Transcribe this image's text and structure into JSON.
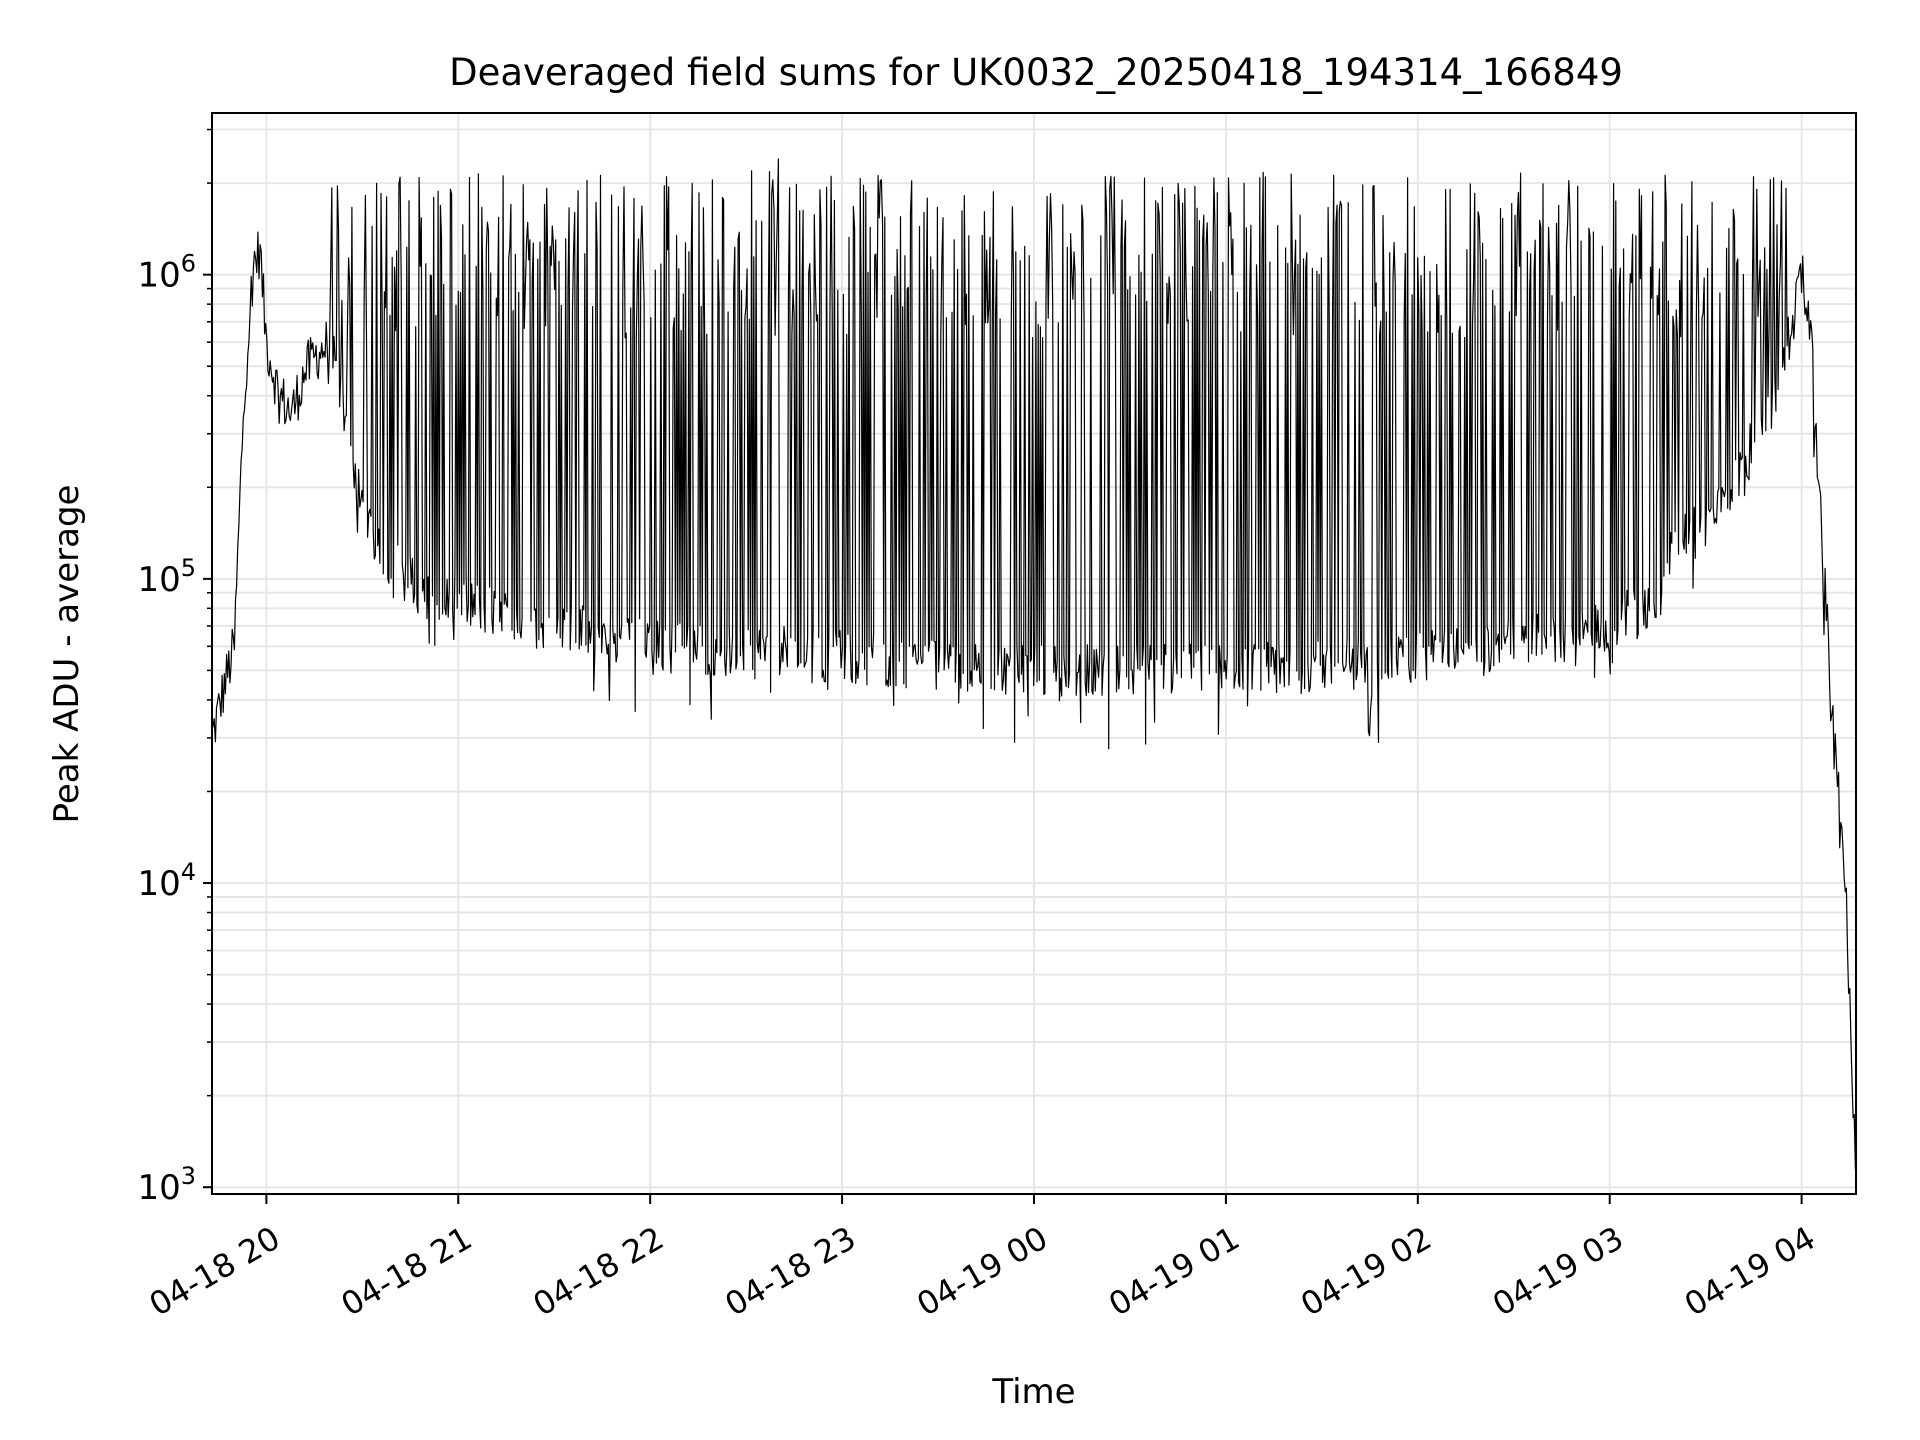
{
  "chart_data": {
    "type": "line",
    "title": "Deaveraged field sums for UK0032_20250418_194314_166849",
    "xlabel": "Time",
    "ylabel": "Peak ADU - average",
    "yscale": "log",
    "ylim": [
      950,
      3400000
    ],
    "xlim": [
      "2025-04-18 19:43",
      "2025-04-19 04:17"
    ],
    "grid": true,
    "line_color": "#000000",
    "grid_color": "#e6e6e6",
    "x_ticks": [
      {
        "label": "04-18 20",
        "time": "2025-04-18 20:00"
      },
      {
        "label": "04-18 21",
        "time": "2025-04-18 21:00"
      },
      {
        "label": "04-18 22",
        "time": "2025-04-18 22:00"
      },
      {
        "label": "04-18 23",
        "time": "2025-04-18 23:00"
      },
      {
        "label": "04-19 00",
        "time": "2025-04-19 00:00"
      },
      {
        "label": "04-19 01",
        "time": "2025-04-19 01:00"
      },
      {
        "label": "04-19 02",
        "time": "2025-04-19 02:00"
      },
      {
        "label": "04-19 03",
        "time": "2025-04-19 03:00"
      },
      {
        "label": "04-19 04",
        "time": "2025-04-19 04:00"
      }
    ],
    "y_ticks": [
      {
        "base": "10",
        "exp": "3",
        "value": 1000
      },
      {
        "base": "10",
        "exp": "4",
        "value": 10000
      },
      {
        "base": "10",
        "exp": "5",
        "value": 100000
      },
      {
        "base": "10",
        "exp": "6",
        "value": 1000000
      }
    ],
    "series": [
      {
        "baseline": [
          [
            "2025-04-18 19:43",
            30000
          ],
          [
            "2025-04-18 19:47",
            45000
          ],
          [
            "2025-04-18 19:50",
            60000
          ],
          [
            "2025-04-18 19:53",
            400000
          ],
          [
            "2025-04-18 19:56",
            1100000
          ],
          [
            "2025-04-18 19:58",
            1200000
          ],
          [
            "2025-04-18 20:00",
            600000
          ],
          [
            "2025-04-18 20:04",
            400000
          ],
          [
            "2025-04-18 20:08",
            350000
          ],
          [
            "2025-04-18 20:12",
            480000
          ],
          [
            "2025-04-18 20:16",
            550000
          ],
          [
            "2025-04-18 20:20",
            600000
          ],
          [
            "2025-04-18 20:25",
            300000
          ],
          [
            "2025-04-18 20:30",
            180000
          ],
          [
            "2025-04-18 20:35",
            130000
          ],
          [
            "2025-04-18 20:40",
            110000
          ],
          [
            "2025-04-18 20:50",
            90000
          ],
          [
            "2025-04-18 21:00",
            85000
          ],
          [
            "2025-04-18 21:15",
            75000
          ],
          [
            "2025-04-18 21:30",
            70000
          ],
          [
            "2025-04-18 21:45",
            65000
          ],
          [
            "2025-04-18 22:00",
            60000
          ],
          [
            "2025-04-18 22:30",
            58000
          ],
          [
            "2025-04-18 23:00",
            55000
          ],
          [
            "2025-04-18 23:30",
            53000
          ],
          [
            "2025-04-19 00:00",
            50000
          ],
          [
            "2025-04-19 00:30",
            50000
          ],
          [
            "2025-04-19 01:00",
            50000
          ],
          [
            "2025-04-19 01:30",
            52000
          ],
          [
            "2025-04-19 02:00",
            55000
          ],
          [
            "2025-04-19 02:30",
            60000
          ],
          [
            "2025-04-19 03:00",
            70000
          ],
          [
            "2025-04-19 03:15",
            85000
          ],
          [
            "2025-04-19 03:20",
            130000
          ],
          [
            "2025-04-19 03:30",
            150000
          ],
          [
            "2025-04-19 03:40",
            220000
          ],
          [
            "2025-04-19 03:50",
            350000
          ],
          [
            "2025-04-19 03:56",
            600000
          ],
          [
            "2025-04-19 04:00",
            1000000
          ],
          [
            "2025-04-19 04:02",
            900000
          ],
          [
            "2025-04-19 04:04",
            400000
          ],
          [
            "2025-04-19 04:06",
            150000
          ],
          [
            "2025-04-19 04:08",
            70000
          ],
          [
            "2025-04-19 04:10",
            30000
          ],
          [
            "2025-04-19 04:12",
            20000
          ],
          [
            "2025-04-19 04:14",
            8000
          ],
          [
            "2025-04-19 04:16",
            2000
          ],
          [
            "2025-04-19 04:17",
            1400
          ]
        ],
        "spike_peak": 1600000,
        "spike_range": [
          "2025-04-18 20:20",
          "2025-04-19 03:56"
        ],
        "notable_points": [
          [
            "2025-04-18 22:40",
            2400000
          ],
          [
            "2025-04-18 20:36",
            1850000
          ],
          [
            "2025-04-19 00:38",
            1750000
          ],
          [
            "2025-04-18 23:54",
            29000
          ]
        ]
      }
    ]
  }
}
